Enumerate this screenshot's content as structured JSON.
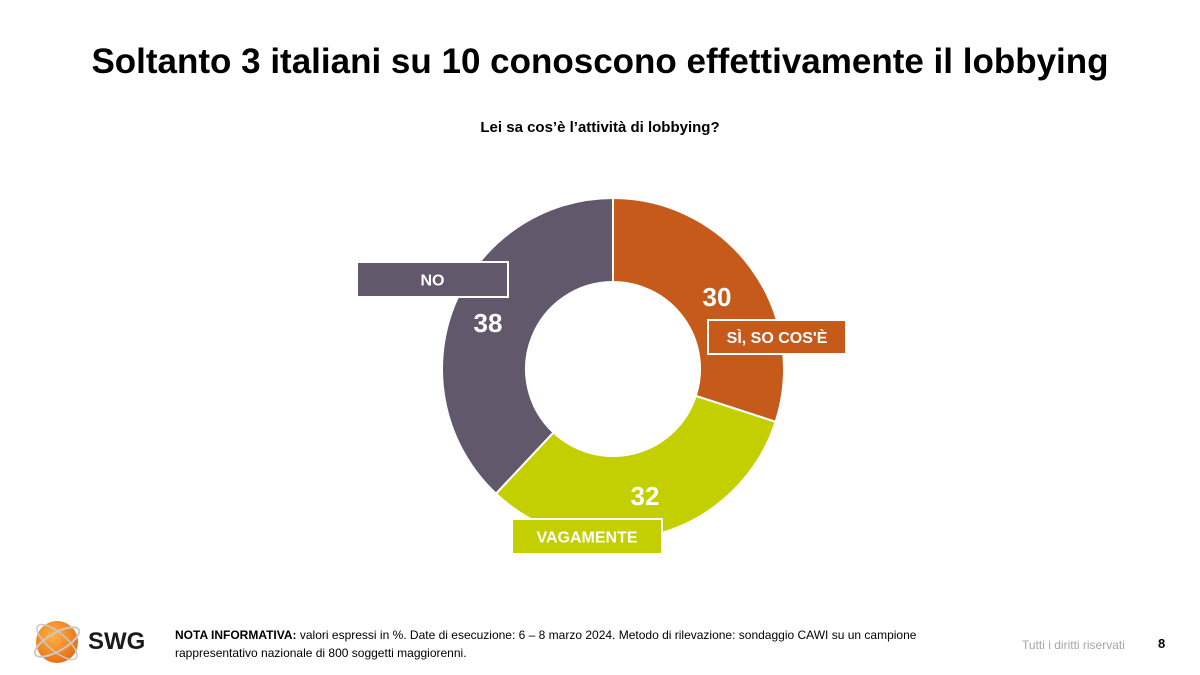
{
  "title": "Soltanto 3 italiani su 10 conoscono effettivamente il lobbying",
  "chart_data": {
    "type": "pie",
    "title": "Lei sa cos’è l’attività di lobbying?",
    "donut": true,
    "categories": [
      "SÌ, SO COS'È",
      "VAGAMENTE",
      "NO"
    ],
    "values": [
      30,
      32,
      38
    ],
    "colors": [
      "#c55a1b",
      "#c4cf00",
      "#62586c"
    ],
    "value_labels": [
      "30",
      "32",
      "38"
    ]
  },
  "footer": {
    "note_label": "NOTA INFORMATIVA:",
    "note_text": " valori espressi in %. Date di esecuzione: 6 – 8 marzo 2024. Metodo di rilevazione: sondaggio CAWI su un campione rappresentativo nazionale di 800 soggetti maggiorenni.",
    "rights": "Tutti i diritti riservati",
    "page_number": "8"
  },
  "logo": {
    "text": "SWG",
    "icon": "swg-globe-icon",
    "color": "#f07f1a"
  }
}
